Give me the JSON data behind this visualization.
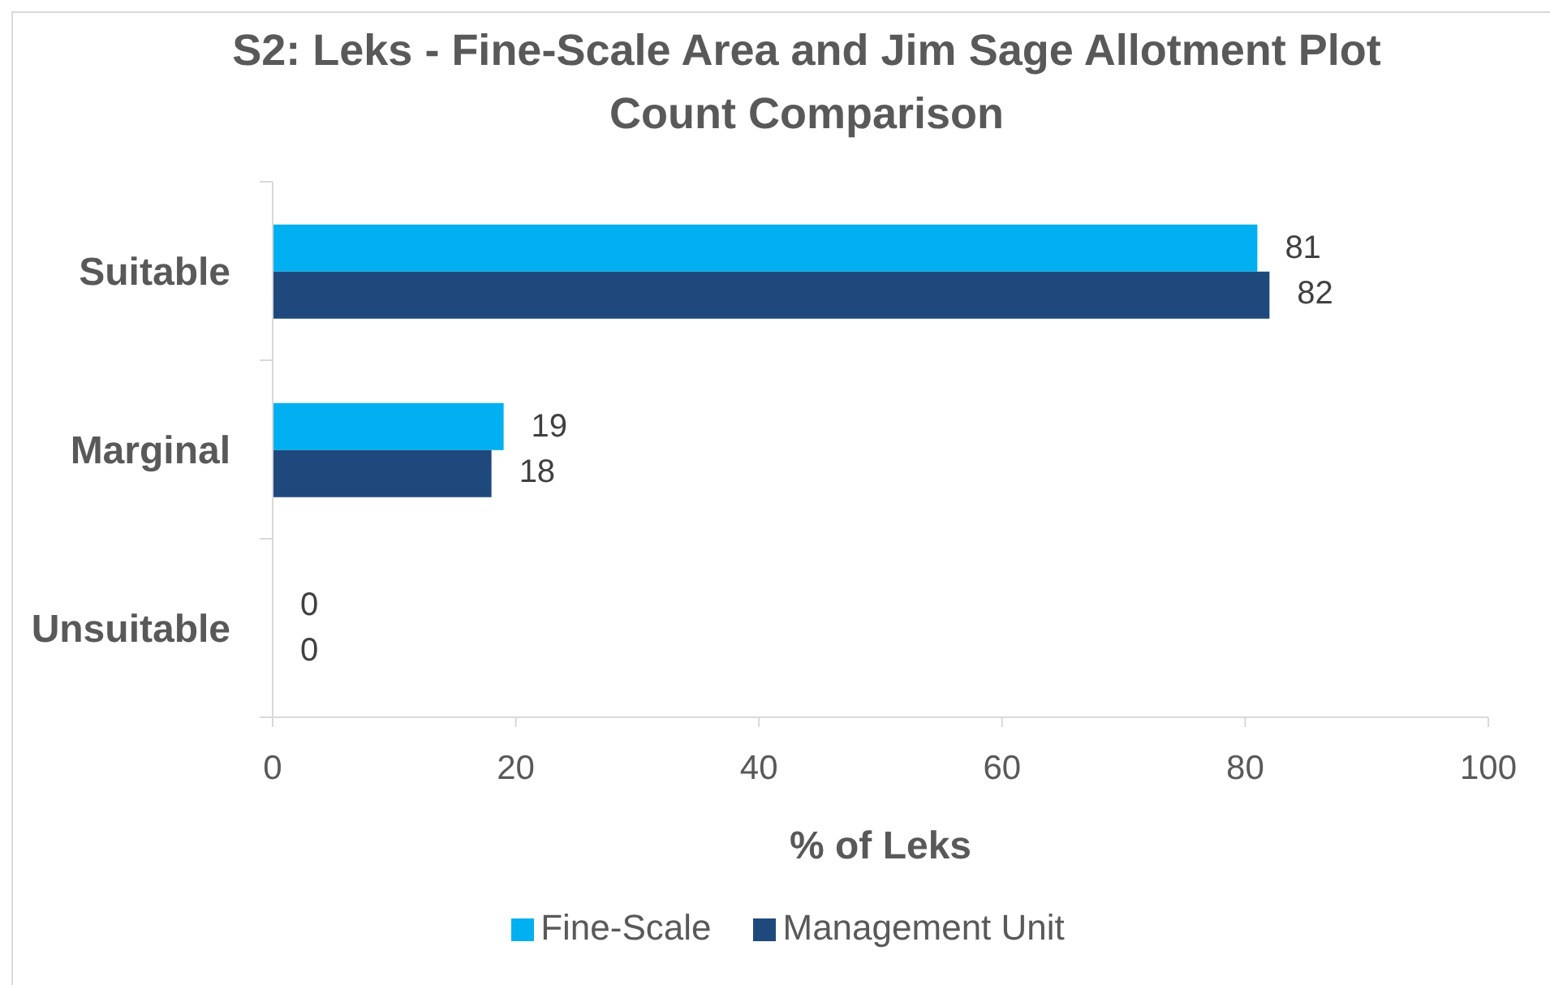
{
  "chart_data": {
    "type": "bar",
    "orientation": "horizontal",
    "title": "S2: Leks - Fine-Scale Area and Jim Sage Allotment Plot Count Comparison",
    "xlabel": "% of Leks",
    "categories": [
      "Suitable",
      "Marginal",
      "Unsuitable"
    ],
    "series": [
      {
        "name": "Fine-Scale",
        "color": "#00b0f0",
        "values": [
          81,
          19,
          0
        ]
      },
      {
        "name": "Management Unit",
        "color": "#1f497d",
        "values": [
          82,
          18,
          0
        ]
      }
    ],
    "xlim": [
      0,
      100
    ],
    "xticks": [
      0,
      20,
      40,
      60,
      80,
      100
    ],
    "data_labels": true,
    "legend": "bottom"
  }
}
